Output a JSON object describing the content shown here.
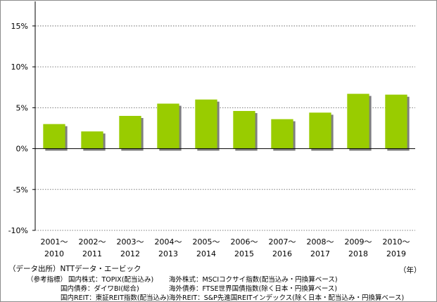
{
  "chart_data": {
    "type": "bar",
    "categories": [
      [
        "2001～",
        "2010"
      ],
      [
        "2002～",
        "2011"
      ],
      [
        "2003～",
        "2012"
      ],
      [
        "2004～",
        "2013"
      ],
      [
        "2005～",
        "2014"
      ],
      [
        "2006～",
        "2015"
      ],
      [
        "2007～",
        "2016"
      ],
      [
        "2008～",
        "2017"
      ],
      [
        "2009～",
        "2018"
      ],
      [
        "2010～",
        "2019"
      ]
    ],
    "values": [
      3.0,
      2.1,
      4.0,
      5.5,
      6.0,
      4.6,
      3.6,
      4.4,
      6.7,
      6.6
    ],
    "ylim": [
      -10,
      18
    ],
    "yticks": [
      -10,
      -5,
      0,
      5,
      10,
      15
    ],
    "ytick_labels": [
      "-10%",
      "-5%",
      "0%",
      "5%",
      "10%",
      "15%"
    ],
    "bar_color": "#99cc00",
    "bar_shadow_color": "#7f7f7f",
    "grid": "dotted horizontal",
    "title": "",
    "xlabel": "",
    "ylabel": ""
  },
  "source_label": "（データ出所）NTTデータ・エービック",
  "unit_label": "（年）",
  "notes": {
    "reference": "（参考指標）",
    "domestic_stock": "国内株式：TOPIX(配当込み)",
    "domestic_bond": "国内債券：ダイワBI(総合)",
    "domestic_reit": "国内REIT：東証REIT指数(配当込み)",
    "foreign_stock": "海外株式：MSCIコクサイ指数(配当込み・円換算ベース)",
    "foreign_bond": "海外債券：FTSE世界国債指数(除く日本・円換算ベース)",
    "foreign_reit": "海外REIT：S&P先進国REITインデックス(除く日本・配当込み・円換算ベース)"
  }
}
